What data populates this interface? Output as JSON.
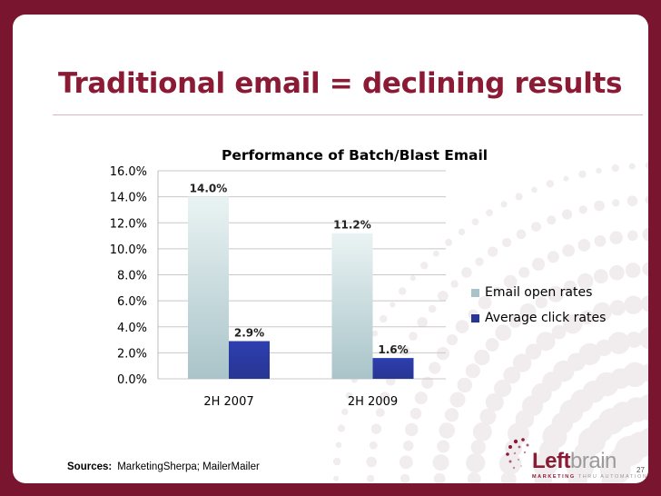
{
  "slide": {
    "title": "Traditional email = declining results",
    "sources_label": "Sources:",
    "sources_text": "MarketingSherpa; MailerMailer",
    "page_number": "27"
  },
  "logo": {
    "word_part1": "Left",
    "word_part2": "brain",
    "tagline_part1": "MARKETING",
    "tagline_part2": "THRU AUTOMATION"
  },
  "colors": {
    "background": "#7a1530",
    "title": "#8b1a35",
    "email_open": "#a9c4c9",
    "click": "#283593"
  },
  "chart_data": {
    "type": "bar",
    "title": "Performance of Batch/Blast Email",
    "categories": [
      "2H 2007",
      "2H 2009"
    ],
    "series": [
      {
        "name": "Email open rates",
        "values": [
          14.0,
          11.2
        ],
        "labels": [
          "14.0%",
          "11.2%"
        ],
        "color": "#a9c4c9"
      },
      {
        "name": "Average click rates",
        "values": [
          2.9,
          1.6
        ],
        "labels": [
          "2.9%",
          "1.6%"
        ],
        "color": "#283593"
      }
    ],
    "yticks": [
      "0.0%",
      "2.0%",
      "4.0%",
      "6.0%",
      "8.0%",
      "10.0%",
      "12.0%",
      "14.0%",
      "16.0%"
    ],
    "ylim": [
      0,
      16
    ],
    "ystep": 2,
    "xlabel": "",
    "ylabel": "",
    "grid": true,
    "legend": "right"
  }
}
